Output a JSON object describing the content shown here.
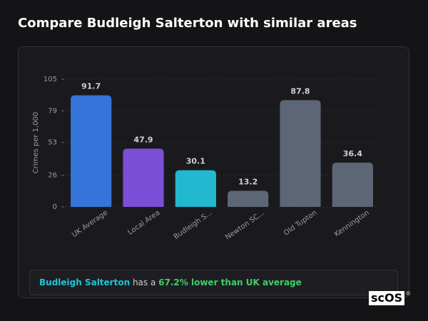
{
  "header": {
    "title": "Compare Budleigh Salterton with similar areas"
  },
  "chart_data": {
    "type": "bar",
    "y_label": "Crimes per 1,000",
    "categories": [
      "UK Average",
      "Local Area",
      "Budleigh S...",
      "Newton SC...",
      "Old Tupton",
      "Kennington"
    ],
    "values": [
      91.7,
      47.9,
      30.1,
      13.2,
      87.8,
      36.4
    ],
    "colors": [
      "#3574d9",
      "#7a4fd6",
      "#22b8cf",
      "#5c6677",
      "#5c6677",
      "#5c6677"
    ],
    "ylim": [
      0,
      105
    ],
    "yticks": [
      0,
      26,
      53,
      79,
      105
    ],
    "grid": true
  },
  "summary": {
    "area": "Budleigh Salterton",
    "connector": "has a",
    "comparison": "67.2% lower than UK average"
  },
  "logo": {
    "text": "scOS",
    "mark": "®"
  }
}
